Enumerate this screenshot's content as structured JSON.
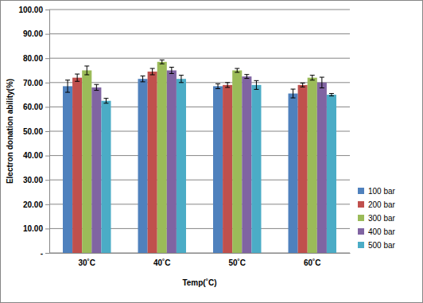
{
  "chart_data": {
    "type": "bar",
    "x_label": "Temp(˚C)",
    "y_label": "Electron donation ability(%)",
    "categories": [
      "30˚C",
      "40˚C",
      "50˚C",
      "60˚C"
    ],
    "series": [
      {
        "name": "100 bar",
        "color": "#4f81bd",
        "values": [
          68.5,
          71.5,
          68.5,
          65.5
        ],
        "errors": [
          2.5,
          1.2,
          1.0,
          1.8
        ]
      },
      {
        "name": "200 bar",
        "color": "#c0504d",
        "values": [
          72,
          74.5,
          69,
          69
        ],
        "errors": [
          1.5,
          1.3,
          1.0,
          0.8
        ]
      },
      {
        "name": "300 bar",
        "color": "#9bbb59",
        "values": [
          75,
          78.5,
          75,
          72
        ],
        "errors": [
          1.8,
          0.8,
          0.8,
          1.0
        ]
      },
      {
        "name": "400 bar",
        "color": "#8064a2",
        "values": [
          68,
          75,
          72.5,
          70
        ],
        "errors": [
          1.2,
          1.3,
          0.8,
          2.2
        ]
      },
      {
        "name": "500 bar",
        "color": "#4bacc6",
        "values": [
          62.5,
          71.5,
          69,
          65
        ],
        "errors": [
          1.0,
          1.5,
          1.8,
          0.5
        ]
      }
    ],
    "ylim": [
      0,
      100
    ],
    "yticks": [
      {
        "value": 0,
        "label": "-"
      },
      {
        "value": 10,
        "label": "10.00"
      },
      {
        "value": 20,
        "label": "20.00"
      },
      {
        "value": 30,
        "label": "30.00"
      },
      {
        "value": 40,
        "label": "40.00"
      },
      {
        "value": 50,
        "label": "50.00"
      },
      {
        "value": 60,
        "label": "60.00"
      },
      {
        "value": 70,
        "label": "70.00"
      },
      {
        "value": 80,
        "label": "80.00"
      },
      {
        "value": 90,
        "label": "90.00"
      },
      {
        "value": 100,
        "label": "100.00"
      }
    ],
    "grid": true,
    "legend": "right"
  }
}
